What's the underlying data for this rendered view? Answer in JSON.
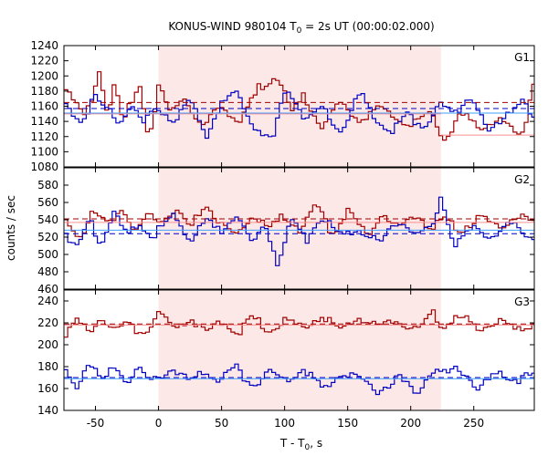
{
  "chart_data": {
    "type": "line",
    "title_main": "KONUS-WIND 980104 T",
    "title_sub": "0",
    "title_rest": " = 2s UT (00:00:02.000)",
    "xlabel_main": "T - T",
    "xlabel_sub": "0",
    "xlabel_rest": ", s",
    "ylabel": "counts / sec",
    "xlim": [
      -75,
      298
    ],
    "xticks": [
      -50,
      0,
      50,
      100,
      150,
      200,
      250
    ],
    "highlight_interval": [
      0,
      224
    ],
    "bin_width": 2.944,
    "panels": [
      {
        "name": "G1",
        "ylim": [
          1080,
          1240
        ],
        "yticks": [
          1080,
          1100,
          1120,
          1140,
          1160,
          1180,
          1200,
          1220,
          1240
        ],
        "series": [
          {
            "color": "#a00000",
            "points": [
              [
                -75,
                1190
              ],
              [
                -60,
                1145
              ],
              [
                -52,
                1172
              ],
              [
                -47,
                1212
              ],
              [
                -40,
                1150
              ],
              [
                -35,
                1188
              ],
              [
                -28,
                1135
              ],
              [
                -22,
                1165
              ],
              [
                -15,
                1192
              ],
              [
                -8,
                1120
              ],
              [
                -2,
                1152
              ],
              [
                0,
                1185
              ],
              [
                10,
                1150
              ],
              [
                20,
                1178
              ],
              [
                35,
                1130
              ],
              [
                50,
                1162
              ],
              [
                65,
                1138
              ],
              [
                80,
                1185
              ],
              [
                95,
                1200
              ],
              [
                105,
                1150
              ],
              [
                115,
                1172
              ],
              [
                130,
                1135
              ],
              [
                145,
                1165
              ],
              [
                160,
                1140
              ],
              [
                175,
                1158
              ],
              [
                190,
                1142
              ],
              [
                205,
                1138
              ],
              [
                215,
                1150
              ],
              [
                222,
                1130
              ],
              [
                226,
                1115
              ],
              [
                240,
                1150
              ],
              [
                255,
                1130
              ],
              [
                270,
                1145
              ],
              [
                285,
                1118
              ],
              [
                292,
                1145
              ],
              [
                297,
                1195
              ]
            ]
          },
          {
            "color": "#0000c0",
            "points": [
              [
                -75,
                1162
              ],
              [
                -62,
                1140
              ],
              [
                -50,
                1170
              ],
              [
                -40,
                1155
              ],
              [
                -30,
                1138
              ],
              [
                -22,
                1165
              ],
              [
                -12,
                1135
              ],
              [
                -5,
                1150
              ],
              [
                0,
                1160
              ],
              [
                12,
                1140
              ],
              [
                25,
                1170
              ],
              [
                38,
                1120
              ],
              [
                50,
                1165
              ],
              [
                62,
                1175
              ],
              [
                75,
                1135
              ],
              [
                90,
                1112
              ],
              [
                102,
                1188
              ],
              [
                118,
                1140
              ],
              [
                130,
                1160
              ],
              [
                145,
                1125
              ],
              [
                160,
                1178
              ],
              [
                172,
                1145
              ],
              [
                185,
                1128
              ],
              [
                198,
                1150
              ],
              [
                210,
                1132
              ],
              [
                224,
                1162
              ],
              [
                235,
                1150
              ],
              [
                248,
                1175
              ],
              [
                262,
                1122
              ],
              [
                275,
                1150
              ],
              [
                288,
                1170
              ],
              [
                297,
                1140
              ]
            ]
          }
        ],
        "fit_dashed": [
          {
            "color": "#a00000",
            "value": 1165
          },
          {
            "color": "#0000c0",
            "value": 1157
          }
        ],
        "fit_solid": [
          {
            "color": "#ff9090",
            "segments": [
              [
                [
                  -75,
                  1150
                ],
                [
                  224,
                  1150
                ]
              ],
              [
                [
                  224,
                  1122
                ],
                [
                  298,
                  1122
                ]
              ]
            ]
          },
          {
            "color": "#40a0ff",
            "segments": [
              [
                [
                  -75,
                  1151
                ],
                [
                  298,
                  1151
                ]
              ]
            ]
          }
        ]
      },
      {
        "name": "G2",
        "ylim": [
          460,
          600
        ],
        "yticks": [
          460,
          480,
          500,
          520,
          540,
          560,
          580
        ],
        "series": [
          {
            "color": "#a00000",
            "points": [
              [
                -75,
                540
              ],
              [
                -62,
                520
              ],
              [
                -52,
                548
              ],
              [
                -40,
                532
              ],
              [
                -30,
                555
              ],
              [
                -18,
                528
              ],
              [
                -8,
                545
              ],
              [
                0,
                538
              ],
              [
                12,
                552
              ],
              [
                25,
                530
              ],
              [
                38,
                558
              ],
              [
                50,
                535
              ],
              [
                62,
                520
              ],
              [
                75,
                548
              ],
              [
                88,
                528
              ],
              [
                100,
                545
              ],
              [
                112,
                530
              ],
              [
                125,
                555
              ],
              [
                138,
                525
              ],
              [
                150,
                548
              ],
              [
                165,
                522
              ],
              [
                178,
                550
              ],
              [
                190,
                528
              ],
              [
                205,
                545
              ],
              [
                218,
                530
              ],
              [
                224,
                540
              ],
              [
                240,
                528
              ],
              [
                255,
                545
              ],
              [
                270,
                530
              ],
              [
                285,
                548
              ],
              [
                297,
                535
              ]
            ]
          },
          {
            "color": "#0000c0",
            "points": [
              [
                -75,
                530
              ],
              [
                -65,
                505
              ],
              [
                -55,
                540
              ],
              [
                -45,
                512
              ],
              [
                -35,
                548
              ],
              [
                -25,
                522
              ],
              [
                -15,
                538
              ],
              [
                -5,
                518
              ],
              [
                0,
                528
              ],
              [
                12,
                545
              ],
              [
                25,
                518
              ],
              [
                38,
                538
              ],
              [
                50,
                525
              ],
              [
                62,
                548
              ],
              [
                75,
                510
              ],
              [
                85,
                535
              ],
              [
                95,
                488
              ],
              [
                105,
                540
              ],
              [
                118,
                518
              ],
              [
                130,
                545
              ],
              [
                145,
                520
              ],
              [
                160,
                530
              ],
              [
                175,
                512
              ],
              [
                190,
                540
              ],
              [
                205,
                522
              ],
              [
                218,
                535
              ],
              [
                224,
                570
              ],
              [
                235,
                512
              ],
              [
                250,
                528
              ],
              [
                265,
                522
              ],
              [
                280,
                535
              ],
              [
                297,
                520
              ]
            ]
          }
        ],
        "fit_dashed": [
          {
            "color": "#a00000",
            "value": 541
          },
          {
            "color": "#0000c0",
            "value": 524
          }
        ],
        "fit_solid": [
          {
            "color": "#ff9090",
            "segments": [
              [
                [
                  -75,
                  537
                ],
                [
                  298,
                  537
                ]
              ]
            ]
          },
          {
            "color": "#40a0ff",
            "segments": [
              [
                [
                  -75,
                  528
                ],
                [
                  298,
                  528
                ]
              ]
            ]
          }
        ]
      },
      {
        "name": "G3",
        "ylim": [
          140,
          250
        ],
        "yticks": [
          140,
          160,
          180,
          200,
          220,
          240
        ],
        "series": [
          {
            "color": "#a00000",
            "points": [
              [
                -75,
                205
              ],
              [
                -65,
                222
              ],
              [
                -55,
                212
              ],
              [
                -45,
                225
              ],
              [
                -35,
                215
              ],
              [
                -25,
                218
              ],
              [
                -15,
                212
              ],
              [
                -5,
                218
              ],
              [
                0,
                228
              ],
              [
                12,
                215
              ],
              [
                25,
                225
              ],
              [
                38,
                212
              ],
              [
                50,
                222
              ],
              [
                62,
                210
              ],
              [
                75,
                225
              ],
              [
                88,
                212
              ],
              [
                100,
                222
              ],
              [
                115,
                215
              ],
              [
                130,
                228
              ],
              [
                145,
                212
              ],
              [
                160,
                225
              ],
              [
                175,
                215
              ],
              [
                190,
                222
              ],
              [
                205,
                212
              ],
              [
                218,
                228
              ],
              [
                224,
                218
              ],
              [
                240,
                225
              ],
              [
                255,
                215
              ],
              [
                270,
                222
              ],
              [
                285,
                212
              ],
              [
                297,
                220
              ]
            ]
          },
          {
            "color": "#0000c0",
            "points": [
              [
                -75,
                175
              ],
              [
                -65,
                162
              ],
              [
                -55,
                185
              ],
              [
                -45,
                165
              ],
              [
                -35,
                180
              ],
              [
                -25,
                168
              ],
              [
                -15,
                176
              ],
              [
                -5,
                165
              ],
              [
                0,
                172
              ],
              [
                12,
                180
              ],
              [
                25,
                165
              ],
              [
                38,
                176
              ],
              [
                50,
                168
              ],
              [
                62,
                178
              ],
              [
                75,
                162
              ],
              [
                88,
                175
              ],
              [
                100,
                168
              ],
              [
                115,
                178
              ],
              [
                130,
                160
              ],
              [
                145,
                175
              ],
              [
                160,
                168
              ],
              [
                175,
                158
              ],
              [
                190,
                170
              ],
              [
                205,
                158
              ],
              [
                218,
                178
              ],
              [
                224,
                172
              ],
              [
                240,
                178
              ],
              [
                255,
                160
              ],
              [
                270,
                175
              ],
              [
                285,
                168
              ],
              [
                297,
                172
              ]
            ]
          }
        ],
        "fit_dashed": [
          {
            "color": "#a00000",
            "value": 219
          },
          {
            "color": "#0000c0",
            "value": 170
          }
        ],
        "fit_solid": [
          {
            "color": "#ff9090",
            "segments": [
              [
                [
                  -75,
                  218
                ],
                [
                  298,
                  218
                ]
              ]
            ]
          },
          {
            "color": "#40a0ff",
            "segments": [
              [
                [
                  -75,
                  169
                ],
                [
                  298,
                  169
                ]
              ]
            ]
          }
        ]
      }
    ],
    "colors": {
      "highlight_fill": "#fde8e8",
      "frame": "#000000"
    }
  }
}
